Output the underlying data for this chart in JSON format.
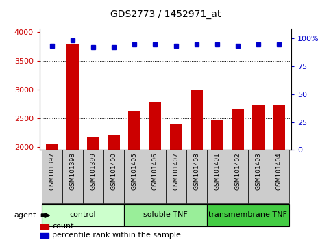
{
  "title": "GDS2773 / 1452971_at",
  "samples": [
    "GSM101397",
    "GSM101398",
    "GSM101399",
    "GSM101400",
    "GSM101405",
    "GSM101406",
    "GSM101407",
    "GSM101408",
    "GSM101401",
    "GSM101402",
    "GSM101403",
    "GSM101404"
  ],
  "counts": [
    2060,
    3780,
    2165,
    2210,
    2630,
    2790,
    2390,
    2990,
    2470,
    2670,
    2740,
    2740
  ],
  "percentiles": [
    93,
    98,
    92,
    92,
    94,
    94,
    93,
    94,
    94,
    93,
    94,
    94
  ],
  "bar_color": "#cc0000",
  "dot_color": "#0000cc",
  "ylim_left": [
    1950,
    4050
  ],
  "ylim_right": [
    0,
    108
  ],
  "yticks_left": [
    2000,
    2500,
    3000,
    3500,
    4000
  ],
  "yticks_right": [
    0,
    25,
    50,
    75,
    100
  ],
  "groups": [
    {
      "label": "control",
      "start": 0,
      "end": 4,
      "color": "#ccffcc"
    },
    {
      "label": "soluble TNF",
      "start": 4,
      "end": 8,
      "color": "#99ee99"
    },
    {
      "label": "transmembrane TNF",
      "start": 8,
      "end": 12,
      "color": "#44cc44"
    }
  ],
  "agent_label": "agent",
  "legend_count_label": "count",
  "legend_percentile_label": "percentile rank within the sample",
  "grid_color": "#000000",
  "tick_box_color": "#cccccc",
  "background_color": "#ffffff"
}
